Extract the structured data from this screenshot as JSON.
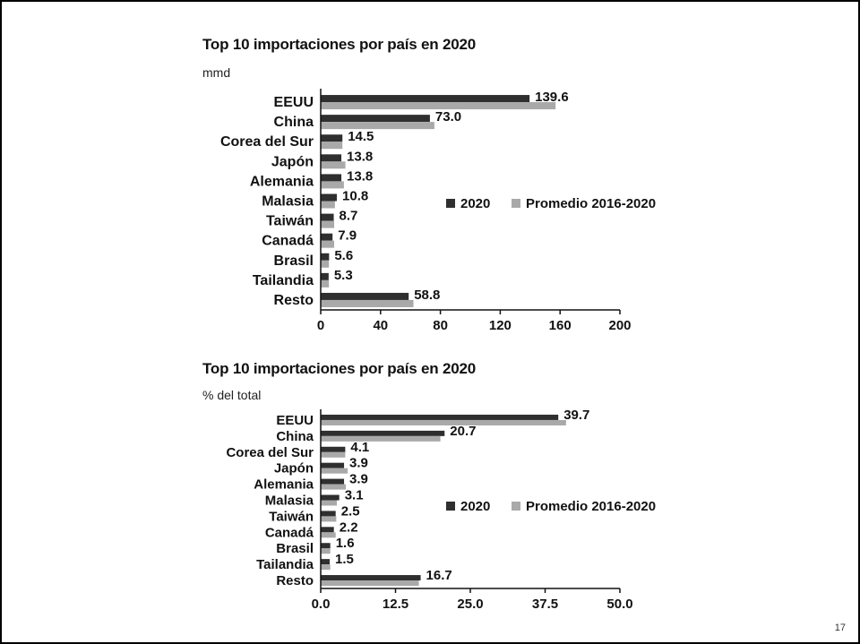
{
  "page_number": "17",
  "colors": {
    "series_2020": "#2f2f2f",
    "series_avg": "#a9a9a9",
    "axis": "#111111"
  },
  "chart_data": [
    {
      "type": "bar",
      "orientation": "horizontal",
      "title": "Top 10 importaciones por país en 2020",
      "unit_label": "mmd",
      "categories": [
        "EEUU",
        "China",
        "Corea del Sur",
        "Japón",
        "Alemania",
        "Malasia",
        "Taiwán",
        "Canadá",
        "Brasil",
        "Tailandia",
        "Resto"
      ],
      "series": [
        {
          "name": "2020",
          "values": [
            139.6,
            73.0,
            14.5,
            13.8,
            13.8,
            10.8,
            8.7,
            7.9,
            5.6,
            5.3,
            58.8
          ]
        },
        {
          "name": "Promedio 2016-2020",
          "values": [
            157,
            76,
            14.5,
            16.5,
            15.5,
            9.5,
            9,
            9,
            5.5,
            5.5,
            62
          ]
        }
      ],
      "data_labels": [
        "139.6",
        "73.0",
        "14.5",
        "13.8",
        "13.8",
        "10.8",
        "8.7",
        "7.9",
        "5.6",
        "5.3",
        "58.8"
      ],
      "xlim": [
        0,
        200
      ],
      "xticks": [
        0,
        40,
        80,
        120,
        160,
        200
      ],
      "xtick_labels": [
        "0",
        "40",
        "80",
        "120",
        "160",
        "200"
      ],
      "grid": false,
      "legend_position": "right-middle"
    },
    {
      "type": "bar",
      "orientation": "horizontal",
      "title": "Top 10 importaciones por país en 2020",
      "unit_label": "% del total",
      "categories": [
        "EEUU",
        "China",
        "Corea del Sur",
        "Japón",
        "Alemania",
        "Malasia",
        "Taiwán",
        "Canadá",
        "Brasil",
        "Tailandia",
        "Resto"
      ],
      "series": [
        {
          "name": "2020",
          "values": [
            39.7,
            20.7,
            4.1,
            3.9,
            3.9,
            3.1,
            2.5,
            2.2,
            1.6,
            1.5,
            16.7
          ]
        },
        {
          "name": "Promedio 2016-2020",
          "values": [
            41,
            20,
            4.1,
            4.5,
            4.2,
            2.7,
            2.6,
            2.5,
            1.6,
            1.6,
            16.4
          ]
        }
      ],
      "data_labels": [
        "39.7",
        "20.7",
        "4.1",
        "3.9",
        "3.9",
        "3.1",
        "2.5",
        "2.2",
        "1.6",
        "1.5",
        "16.7"
      ],
      "xlim": [
        0,
        50
      ],
      "xticks": [
        0,
        12.5,
        25,
        37.5,
        50
      ],
      "xtick_labels": [
        "0.0",
        "12.5",
        "25.0",
        "37.5",
        "50.0"
      ],
      "grid": false,
      "legend_position": "right-middle"
    }
  ]
}
